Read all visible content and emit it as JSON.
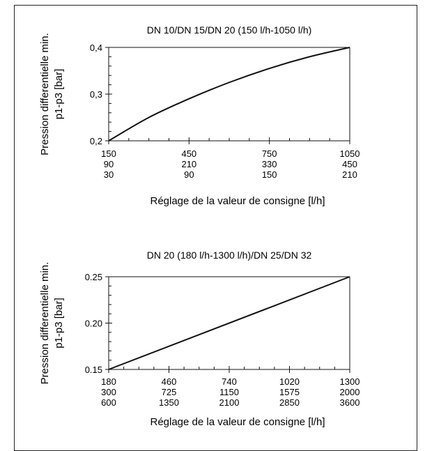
{
  "chart_data": [
    {
      "type": "line",
      "title": "DN 10/DN 15/DN 20 (150 l/h-1050 l/h)",
      "ylabel_lines": [
        "Pression differentielle min.",
        "p1-p3 [bar]"
      ],
      "xlabel": "Réglage de la valeur de consigne [l/h]",
      "ylim": [
        0.2,
        0.4
      ],
      "y_ticks": [
        "0,2",
        "0,3",
        "0,4"
      ],
      "x_tick_rows": [
        [
          "150",
          "450",
          "750",
          "1050"
        ],
        [
          "90",
          "210",
          "330",
          "450"
        ],
        [
          "30",
          "90",
          "150",
          "210"
        ]
      ],
      "x_domain": [
        150,
        1050
      ],
      "grid": false,
      "series": [
        {
          "x": [
            150,
            300,
            450,
            600,
            750,
            900,
            1050
          ],
          "y": [
            0.2,
            0.25,
            0.29,
            0.325,
            0.355,
            0.38,
            0.4
          ]
        }
      ]
    },
    {
      "type": "line",
      "title": "DN 20 (180 l/h-1300 l/h)/DN 25/DN 32",
      "ylabel_lines": [
        "Pression differentielle min.",
        "p1-p3 [bar]"
      ],
      "xlabel": "Réglage de la valeur de consigne [l/h]",
      "ylim": [
        0.15,
        0.25
      ],
      "y_ticks": [
        "0.15",
        "0.20",
        "0.25"
      ],
      "x_tick_rows": [
        [
          "180",
          "460",
          "740",
          "1020",
          "1300"
        ],
        [
          "300",
          "725",
          "1150",
          "1575",
          "2000"
        ],
        [
          "600",
          "1350",
          "2100",
          "2850",
          "3600"
        ]
      ],
      "x_domain": [
        180,
        1300
      ],
      "grid": false,
      "series": [
        {
          "x": [
            180,
            1300
          ],
          "y": [
            0.15,
            0.25
          ]
        }
      ]
    }
  ]
}
